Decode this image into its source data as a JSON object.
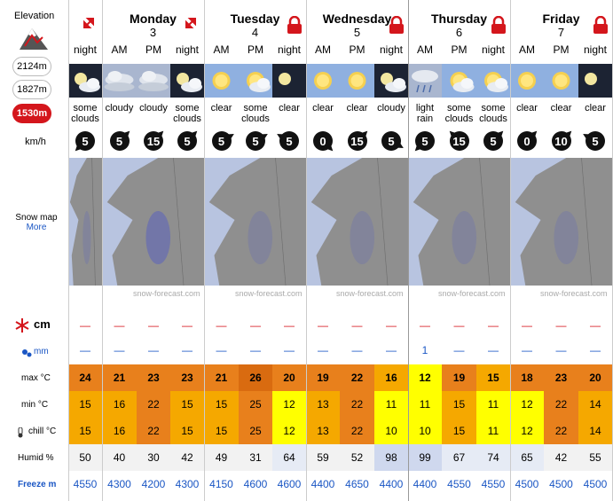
{
  "elevation": {
    "title": "Elevation",
    "levels": [
      "2124m",
      "1827m",
      "1530m"
    ],
    "active": 2
  },
  "days": [
    {
      "name": "",
      "num": "",
      "periods": [
        "night"
      ],
      "start": 0
    },
    {
      "name": "Monday",
      "num": "3",
      "periods": [
        "AM",
        "PM",
        "night"
      ],
      "start": 1
    },
    {
      "name": "Tuesday",
      "num": "4",
      "periods": [
        "AM",
        "PM",
        "night"
      ],
      "start": 4
    },
    {
      "name": "Wednesday",
      "num": "5",
      "periods": [
        "AM",
        "PM",
        "night"
      ],
      "start": 7
    },
    {
      "name": "Thursday",
      "num": "6",
      "periods": [
        "AM",
        "PM",
        "night"
      ],
      "start": 10
    },
    {
      "name": "Friday",
      "num": "7",
      "periods": [
        "AM",
        "PM",
        "night"
      ],
      "start": 13
    }
  ],
  "summary": [
    "some clouds",
    "cloudy",
    "cloudy",
    "some clouds",
    "clear",
    "some clouds",
    "clear",
    "clear",
    "clear",
    "cloudy",
    "light rain",
    "some clouds",
    "some clouds",
    "clear",
    "clear",
    "clear"
  ],
  "wind_unit": "km/h",
  "wind": [
    "5",
    "5",
    "15",
    "5",
    "5",
    "5",
    "5",
    "0",
    "15",
    "5",
    "5",
    "15",
    "5",
    "0",
    "10",
    "5"
  ],
  "snow_map": {
    "title": "Snow map",
    "more": "More",
    "watermark": "snow-forecast.com"
  },
  "snow": {
    "unit": "cm",
    "values": [
      "—",
      "—",
      "—",
      "—",
      "—",
      "—",
      "—",
      "—",
      "—",
      "—",
      "—",
      "—",
      "—",
      "—",
      "—",
      "—"
    ]
  },
  "rain": {
    "unit": "mm",
    "values": [
      "—",
      "—",
      "—",
      "—",
      "—",
      "—",
      "—",
      "—",
      "—",
      "—",
      "1",
      "—",
      "—",
      "—",
      "—",
      "—"
    ]
  },
  "rows": {
    "max": {
      "label": "max °C",
      "values": [
        "24",
        "21",
        "23",
        "23",
        "21",
        "26",
        "20",
        "19",
        "22",
        "16",
        "12",
        "19",
        "15",
        "18",
        "23",
        "20"
      ]
    },
    "min": {
      "label": "min °C",
      "values": [
        "15",
        "16",
        "22",
        "15",
        "15",
        "25",
        "12",
        "13",
        "22",
        "11",
        "11",
        "15",
        "11",
        "12",
        "22",
        "14"
      ]
    },
    "chill": {
      "label": "chill °C",
      "values": [
        "15",
        "16",
        "22",
        "15",
        "15",
        "25",
        "12",
        "13",
        "22",
        "10",
        "10",
        "15",
        "11",
        "12",
        "22",
        "14"
      ]
    },
    "humid": {
      "label": "Humid %",
      "values": [
        "50",
        "40",
        "30",
        "42",
        "49",
        "31",
        "64",
        "59",
        "52",
        "98",
        "99",
        "67",
        "74",
        "65",
        "42",
        "55"
      ]
    },
    "freeze": {
      "label": "Freeze m",
      "values": [
        "4550",
        "4300",
        "4200",
        "4300",
        "4150",
        "4600",
        "4600",
        "4400",
        "4650",
        "4400",
        "4400",
        "4550",
        "4550",
        "4500",
        "4500",
        "4500"
      ]
    }
  },
  "colors": {
    "accent": "#d4161c",
    "link": "#1a56c4",
    "hot": "#e8801c",
    "warm": "#f5a800",
    "mild": "#ffff00",
    "veryhot": "#d96b10",
    "humid_low": "#f2f2f2",
    "humid_high": "#cfd8ee",
    "map_sea": "#b8c4e0",
    "map_land": "#8f8f8f"
  }
}
